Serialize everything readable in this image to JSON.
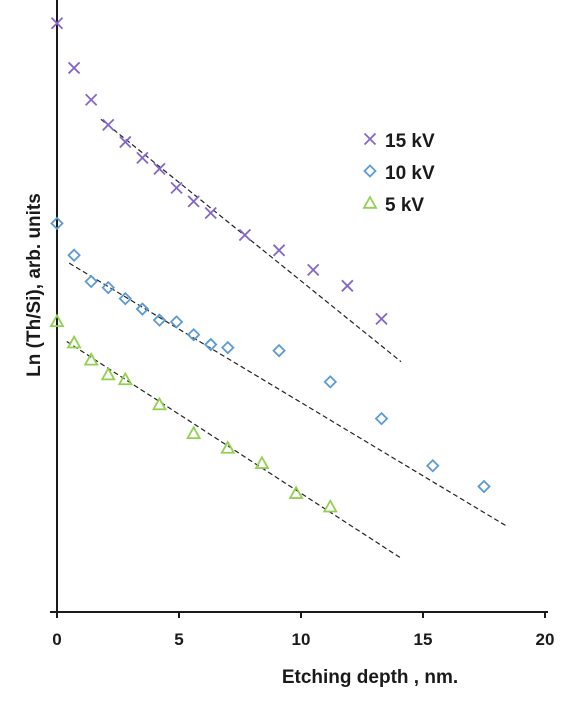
{
  "chart_data": {
    "type": "scatter",
    "title": "",
    "xlabel": "Etching depth ,  nm.",
    "ylabel": "Ln (Th/Si),  arb. units",
    "xlim": [
      0,
      20
    ],
    "ylim": [
      0,
      100
    ],
    "x_ticks": [
      0,
      5,
      10,
      15,
      20
    ],
    "x_tick_labels": [
      "0",
      "5",
      "10",
      "15",
      "20"
    ],
    "y_tick_labels_shown": false,
    "grid": false,
    "legend_position": "top-right",
    "series": [
      {
        "name": "15 kV",
        "marker": "x",
        "color": "#8466C8",
        "x": [
          0,
          0.7,
          1.4,
          2.1,
          2.8,
          3.5,
          4.2,
          4.9,
          5.6,
          6.3,
          7.7,
          9.1,
          10.5,
          11.9,
          13.3
        ],
        "y": [
          96.2,
          88.9,
          83.7,
          79.6,
          76.8,
          74.2,
          72.4,
          69.3,
          67.1,
          65.2,
          61.6,
          59.1,
          55.9,
          53.3,
          47.9
        ]
      },
      {
        "name": "10 kV",
        "marker": "diamond",
        "color": "#5B9BD5",
        "x": [
          0,
          0.7,
          1.4,
          2.1,
          2.8,
          3.5,
          4.2,
          4.9,
          5.6,
          6.3,
          7.0,
          9.1,
          11.2,
          13.3,
          15.4,
          17.5
        ],
        "y": [
          63.5,
          58.3,
          54.0,
          53.0,
          51.2,
          49.5,
          47.7,
          47.4,
          45.3,
          43.7,
          43.2,
          42.7,
          37.6,
          31.6,
          23.9,
          20.5
        ]
      },
      {
        "name": "5 kV",
        "marker": "triangle",
        "color": "#92D050",
        "x": [
          0,
          0.7,
          1.4,
          2.1,
          2.8,
          4.2,
          5.6,
          7.0,
          8.4,
          9.8,
          11.2
        ],
        "y": [
          47.5,
          44.0,
          41.2,
          38.8,
          38.0,
          33.9,
          29.2,
          26.8,
          24.3,
          19.4,
          17.2
        ]
      }
    ],
    "trendlines": [
      {
        "series": "15 kV",
        "x": [
          1.8,
          14.1
        ],
        "y": [
          80.5,
          40.9
        ]
      },
      {
        "series": "10 kV",
        "x": [
          0.5,
          18.4
        ],
        "y": [
          57.0,
          14.1
        ]
      },
      {
        "series": "5 kV",
        "x": [
          0.4,
          14.1
        ],
        "y": [
          44.2,
          8.8
        ]
      }
    ]
  }
}
